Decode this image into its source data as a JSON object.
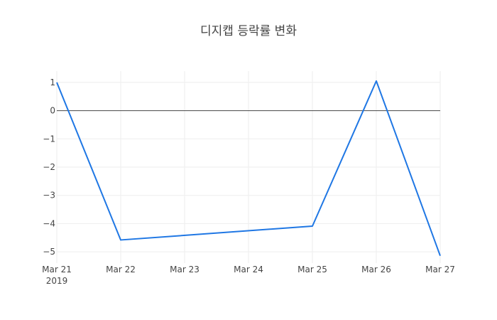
{
  "chart_data": {
    "type": "line",
    "title": "디지캡 등락률 변화",
    "x": [
      "2019-03-21",
      "2019-03-22",
      "2019-03-25",
      "2019-03-26",
      "2019-03-27"
    ],
    "series": [
      {
        "values": [
          1.0,
          -4.58,
          -4.09,
          1.05,
          -5.14
        ],
        "color": "#1f77e4"
      }
    ],
    "xlim": [
      "2019-03-21",
      "2019-03-27"
    ],
    "ylim": [
      -5.4,
      1.4
    ],
    "x_tick_labels": [
      "Mar 21",
      "Mar 22",
      "Mar 23",
      "Mar 24",
      "Mar 25",
      "Mar 26",
      "Mar 27"
    ],
    "x_tick_year": "2019",
    "y_ticks": [
      1,
      0,
      -1,
      -2,
      -3,
      -4,
      -5
    ],
    "y_tick_labels": [
      "1",
      "0",
      "−1",
      "−2",
      "−3",
      "−4",
      "−5"
    ],
    "grid": true,
    "zero_line": true,
    "colors": {
      "grid": "#eeeeee",
      "zero_line": "#444444",
      "text": "#444444"
    }
  }
}
